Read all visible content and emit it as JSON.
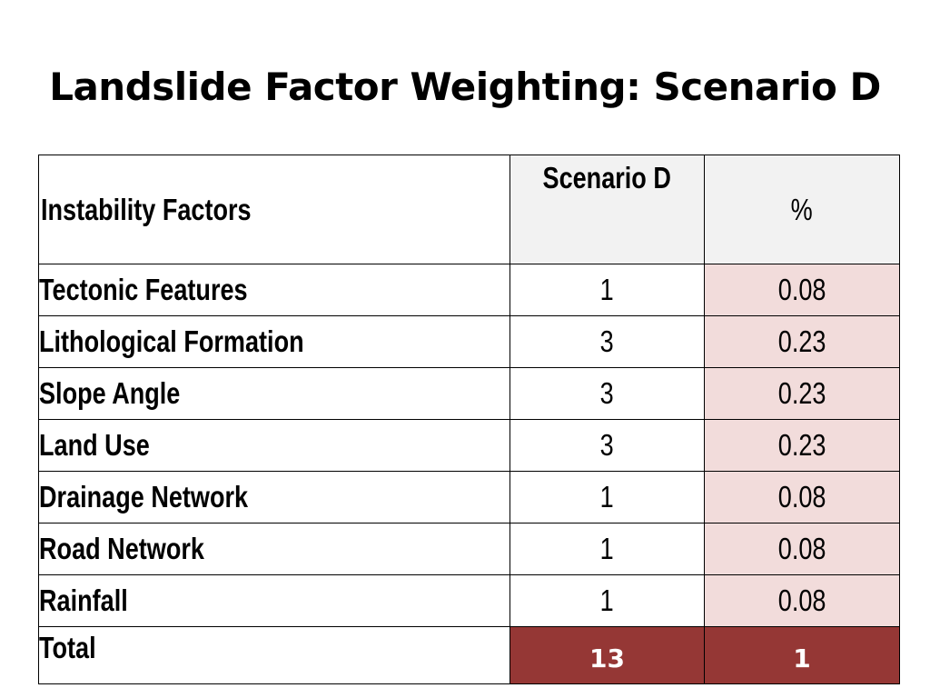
{
  "title": "Landslide Factor Weighting: Scenario D",
  "table": {
    "headers": {
      "factor": "Instability Factors",
      "scenario": "Scenario D",
      "percent": "%"
    },
    "rows": [
      {
        "factor": "Tectonic Features",
        "score": "1",
        "percent": "0.08"
      },
      {
        "factor": "Lithological Formation",
        "score": "3",
        "percent": "0.23"
      },
      {
        "factor": "Slope Angle",
        "score": "3",
        "percent": "0.23"
      },
      {
        "factor": "Land Use",
        "score": "3",
        "percent": "0.23"
      },
      {
        "factor": "Drainage Network",
        "score": "1",
        "percent": "0.08"
      },
      {
        "factor": "Road Network",
        "score": "1",
        "percent": "0.08"
      },
      {
        "factor": "Rainfall",
        "score": "1",
        "percent": "0.08"
      }
    ],
    "total": {
      "label": "Total",
      "score": "13",
      "percent": "1"
    }
  },
  "colors": {
    "header_fill": "#f2f2f2",
    "percent_fill": "#f2dcdb",
    "total_fill": "#953735",
    "total_text": "#ffffff"
  }
}
